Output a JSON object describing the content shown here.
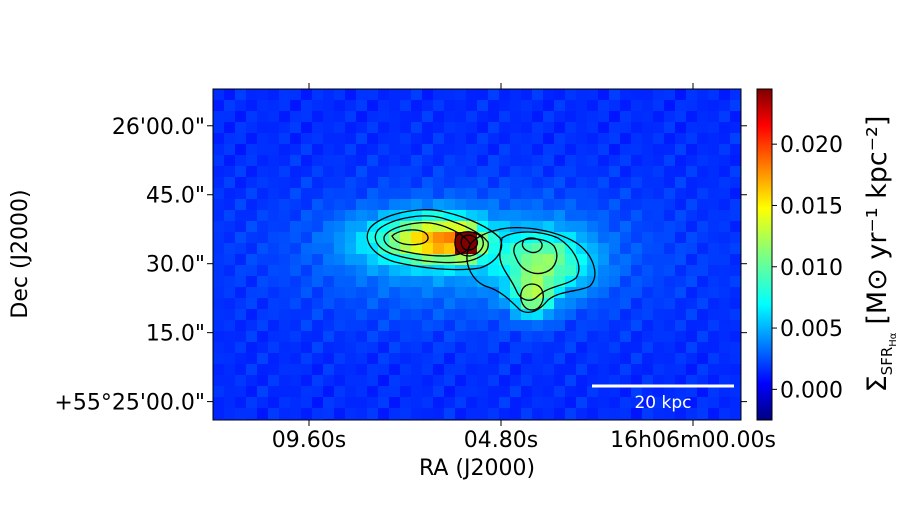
{
  "chart_data": {
    "type": "heatmap",
    "title": "",
    "xlabel": "RA (J2000)",
    "ylabel": "Dec (J2000)",
    "x_ticks": [
      "09.60s",
      "04.80s",
      "16h06m00.00s"
    ],
    "y_ticks": [
      "+55°25'00.0\"",
      "15.0\"",
      "30.0\"",
      "45.0\"",
      "26'00.0\""
    ],
    "x_tick_seconds": [
      9.6,
      4.8,
      0.0
    ],
    "y_tick_arcsec": [
      0,
      15,
      30,
      45,
      60
    ],
    "x_range_seconds": [
      12.0,
      -1.2
    ],
    "y_range_arcsec": [
      -4,
      68
    ],
    "colorbar": {
      "label": "Σ",
      "label_sub": "SFR",
      "label_subsub": "Hα",
      "label_units": "[M⊙ yr⁻¹ kpc⁻²]",
      "colormap": "jet",
      "range": [
        -0.0025,
        0.0245
      ],
      "ticks": [
        "0.000",
        "0.005",
        "0.010",
        "0.015",
        "0.020"
      ],
      "tick_values": [
        0.0,
        0.005,
        0.01,
        0.015,
        0.02
      ]
    },
    "scalebar_label": "20 kpc",
    "peak_value": 0.024,
    "colors": {
      "background_low": "#0a32ff",
      "peak": "#b00000",
      "contour": "#000000",
      "scalebar": "#ffffff"
    }
  }
}
